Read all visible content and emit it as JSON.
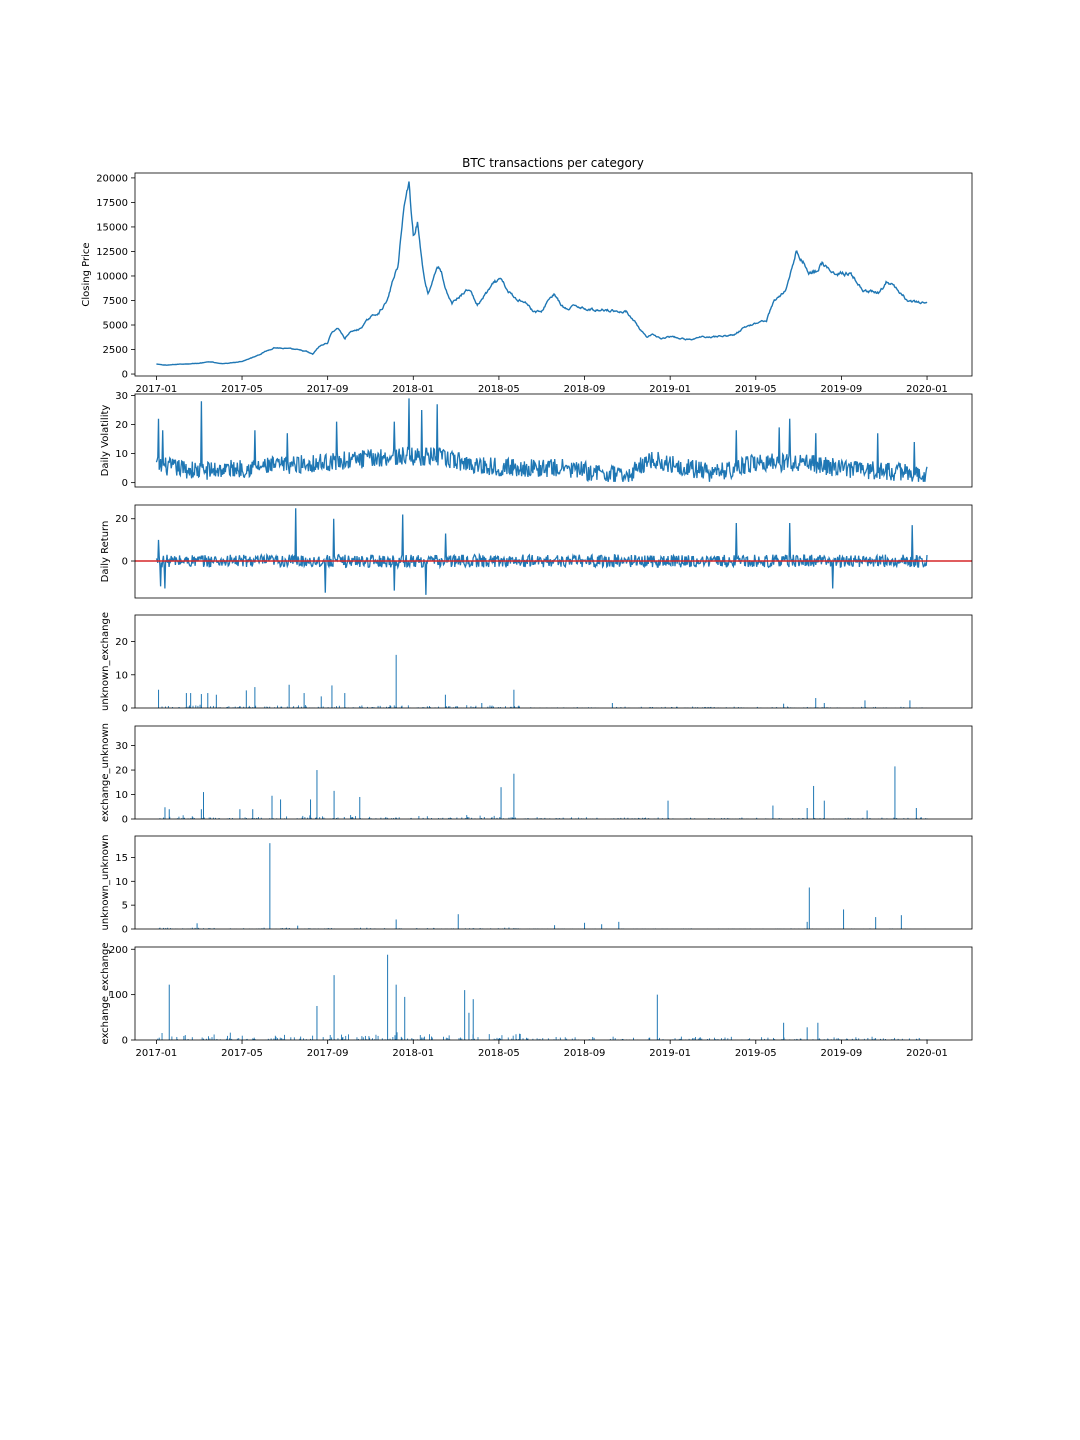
{
  "chart_data": {
    "type": "line",
    "title": "BTC transactions per category",
    "date_range": [
      "2017-01",
      "2020-01"
    ],
    "x_tick_labels": [
      "2017-01",
      "2017-05",
      "2017-09",
      "2018-01",
      "2018-05",
      "2018-09",
      "2019-01",
      "2019-05",
      "2019-09",
      "2020-01"
    ],
    "x_tick_months": [
      0,
      4,
      8,
      12,
      16,
      20,
      24,
      28,
      32,
      36
    ],
    "x_lim_months": [
      -1.0,
      38.1
    ],
    "panels": [
      {
        "id": "closing-price",
        "type": "line",
        "ylabel": "Closing Price",
        "ylim": [
          -200,
          20500
        ],
        "yticks": [
          0,
          2500,
          5000,
          7500,
          10000,
          12500,
          15000,
          17500,
          20000
        ],
        "ytick_labels": [
          "0",
          "2500",
          "5000",
          "7500",
          "10000",
          "12500",
          "15000",
          "17500",
          "20000"
        ],
        "show_x_ticks": true,
        "anchors": [
          [
            0,
            1000
          ],
          [
            0.5,
            900
          ],
          [
            1,
            1000
          ],
          [
            1.5,
            1050
          ],
          [
            2,
            1100
          ],
          [
            2.5,
            1250
          ],
          [
            3,
            1050
          ],
          [
            3.5,
            1150
          ],
          [
            4,
            1300
          ],
          [
            4.5,
            1700
          ],
          [
            5,
            2200
          ],
          [
            5.5,
            2700
          ],
          [
            6,
            2600
          ],
          [
            6.5,
            2500
          ],
          [
            7,
            2300
          ],
          [
            7.3,
            2000
          ],
          [
            7.6,
            2800
          ],
          [
            8,
            3200
          ],
          [
            8.2,
            4300
          ],
          [
            8.5,
            4700
          ],
          [
            8.8,
            3600
          ],
          [
            9,
            4200
          ],
          [
            9.5,
            4600
          ],
          [
            10,
            5800
          ],
          [
            10.4,
            6300
          ],
          [
            10.8,
            7500
          ],
          [
            11.1,
            10000
          ],
          [
            11.3,
            11000
          ],
          [
            11.5,
            16000
          ],
          [
            11.6,
            17500
          ],
          [
            11.8,
            19500
          ],
          [
            12,
            14200
          ],
          [
            12.2,
            15500
          ],
          [
            12.4,
            11500
          ],
          [
            12.5,
            10000
          ],
          [
            12.7,
            8200
          ],
          [
            12.9,
            9500
          ],
          [
            13.1,
            11000
          ],
          [
            13.3,
            10500
          ],
          [
            13.5,
            8500
          ],
          [
            13.8,
            7200
          ],
          [
            14.2,
            8000
          ],
          [
            14.6,
            8700
          ],
          [
            15,
            7000
          ],
          [
            15.4,
            8200
          ],
          [
            15.8,
            9300
          ],
          [
            16.1,
            9600
          ],
          [
            16.4,
            8500
          ],
          [
            16.8,
            7600
          ],
          [
            17.2,
            7500
          ],
          [
            17.6,
            6400
          ],
          [
            18,
            6300
          ],
          [
            18.3,
            7600
          ],
          [
            18.6,
            8200
          ],
          [
            18.9,
            7000
          ],
          [
            19.2,
            6500
          ],
          [
            19.6,
            7000
          ],
          [
            20,
            6700
          ],
          [
            20.5,
            6500
          ],
          [
            21,
            6600
          ],
          [
            21.5,
            6400
          ],
          [
            22,
            6300
          ],
          [
            22.3,
            5500
          ],
          [
            22.6,
            4500
          ],
          [
            22.9,
            3700
          ],
          [
            23.2,
            4000
          ],
          [
            23.6,
            3600
          ],
          [
            24,
            3800
          ],
          [
            24.5,
            3600
          ],
          [
            25,
            3500
          ],
          [
            25.5,
            3800
          ],
          [
            26,
            3800
          ],
          [
            26.5,
            3900
          ],
          [
            27,
            4000
          ],
          [
            27.5,
            4800
          ],
          [
            28,
            5200
          ],
          [
            28.5,
            5500
          ],
          [
            28.8,
            7200
          ],
          [
            29.1,
            8000
          ],
          [
            29.4,
            8500
          ],
          [
            29.7,
            11000
          ],
          [
            29.9,
            12500
          ],
          [
            30.2,
            11500
          ],
          [
            30.5,
            10300
          ],
          [
            30.8,
            10500
          ],
          [
            31.1,
            11300
          ],
          [
            31.4,
            10700
          ],
          [
            31.7,
            10000
          ],
          [
            32,
            10300
          ],
          [
            32.4,
            10200
          ],
          [
            32.7,
            9500
          ],
          [
            33,
            8400
          ],
          [
            33.4,
            8300
          ],
          [
            33.8,
            8200
          ],
          [
            34.1,
            9400
          ],
          [
            34.4,
            9000
          ],
          [
            34.8,
            8200
          ],
          [
            35.1,
            7500
          ],
          [
            35.5,
            7300
          ],
          [
            35.8,
            7200
          ],
          [
            36,
            7200
          ]
        ]
      },
      {
        "id": "daily-volatility",
        "type": "noise-line",
        "ylabel": "Daily Volatility",
        "ylim": [
          -1.5,
          30.5
        ],
        "yticks": [
          0,
          10,
          20,
          30
        ],
        "ytick_labels": [
          "0",
          "10",
          "20",
          "30"
        ],
        "show_x_ticks": false,
        "baseline": [
          [
            0,
            6
          ],
          [
            2,
            4
          ],
          [
            4,
            5
          ],
          [
            6,
            6
          ],
          [
            8,
            7
          ],
          [
            11,
            9
          ],
          [
            13,
            9
          ],
          [
            15,
            6
          ],
          [
            17,
            5
          ],
          [
            19,
            5
          ],
          [
            21,
            3
          ],
          [
            22,
            2
          ],
          [
            23,
            8
          ],
          [
            25,
            5
          ],
          [
            26,
            3
          ],
          [
            28,
            7
          ],
          [
            30,
            7
          ],
          [
            32,
            5
          ],
          [
            34,
            4
          ],
          [
            36,
            3
          ]
        ],
        "amplitude": 4,
        "spikes": [
          [
            0.1,
            22
          ],
          [
            0.3,
            18
          ],
          [
            2.1,
            28
          ],
          [
            4.6,
            18
          ],
          [
            6.1,
            17
          ],
          [
            8.4,
            21
          ],
          [
            11.1,
            21
          ],
          [
            11.8,
            29
          ],
          [
            12.4,
            25
          ],
          [
            13.1,
            27
          ],
          [
            27.1,
            18
          ],
          [
            29.1,
            19
          ],
          [
            29.6,
            22
          ],
          [
            30.8,
            17
          ],
          [
            33.7,
            17
          ],
          [
            35.4,
            14
          ]
        ],
        "gaps": []
      },
      {
        "id": "daily-return",
        "type": "noise-line",
        "ylabel": "Daily Return",
        "ylim": [
          -17.5,
          26.5
        ],
        "yticks": [
          0,
          20
        ],
        "ytick_labels": [
          "0",
          "20"
        ],
        "show_x_ticks": false,
        "baseline": [
          [
            0,
            0
          ],
          [
            36,
            0
          ]
        ],
        "amplitude": 4,
        "spikes": [
          [
            0.1,
            10
          ],
          [
            0.2,
            -12
          ],
          [
            0.4,
            -13
          ],
          [
            6.5,
            25
          ],
          [
            7.9,
            -15
          ],
          [
            8.3,
            20
          ],
          [
            11.1,
            -14
          ],
          [
            11.5,
            22
          ],
          [
            12.6,
            -16
          ],
          [
            13.5,
            13
          ],
          [
            27.1,
            18
          ],
          [
            29.6,
            18
          ],
          [
            31.6,
            -13
          ],
          [
            35.3,
            17
          ]
        ],
        "zero_line_color": "#d62728"
      },
      {
        "id": "unknown-exchange",
        "type": "spikes",
        "ylabel": "unknown_exchange",
        "ylim": [
          0,
          28
        ],
        "yticks": [
          0,
          10,
          20
        ],
        "ytick_labels": [
          "0",
          "10",
          "20"
        ],
        "show_x_ticks": false,
        "spikes": [
          [
            0.1,
            5.5
          ],
          [
            1.4,
            4.5
          ],
          [
            1.6,
            4.5
          ],
          [
            2.1,
            4.2
          ],
          [
            2.4,
            4.5
          ],
          [
            2.8,
            4
          ],
          [
            4.2,
            5.3
          ],
          [
            4.6,
            6.3
          ],
          [
            6.2,
            7
          ],
          [
            6.9,
            4.5
          ],
          [
            7.7,
            3.5
          ],
          [
            8.2,
            6.8
          ],
          [
            8.8,
            4.5
          ],
          [
            11.2,
            16
          ],
          [
            13.5,
            4
          ],
          [
            15.2,
            1.5
          ],
          [
            16.7,
            5.5
          ],
          [
            21.3,
            1.5
          ],
          [
            29.3,
            1.3
          ],
          [
            30.8,
            3
          ],
          [
            31.2,
            1.5
          ],
          [
            33.1,
            2.3
          ],
          [
            35.2,
            2.3
          ]
        ],
        "noise_level": 0.5
      },
      {
        "id": "exchange-unknown",
        "type": "spikes",
        "ylabel": "exchange_unknown",
        "ylim": [
          0,
          38
        ],
        "yticks": [
          0,
          10,
          20,
          30
        ],
        "ytick_labels": [
          "0",
          "10",
          "20",
          "30"
        ],
        "show_x_ticks": false,
        "spikes": [
          [
            0.4,
            4.8
          ],
          [
            0.6,
            4
          ],
          [
            2.1,
            4
          ],
          [
            2.2,
            11
          ],
          [
            3.9,
            4
          ],
          [
            4.5,
            4
          ],
          [
            5.4,
            9.5
          ],
          [
            5.8,
            8
          ],
          [
            7.2,
            8
          ],
          [
            7.5,
            20
          ],
          [
            8.3,
            11.5
          ],
          [
            9.5,
            9
          ],
          [
            16.1,
            13
          ],
          [
            16.7,
            18.5
          ],
          [
            23.9,
            7.5
          ],
          [
            28.8,
            5.5
          ],
          [
            30.4,
            4.5
          ],
          [
            30.7,
            13.5
          ],
          [
            31.2,
            7.5
          ],
          [
            33.2,
            3.5
          ],
          [
            34.5,
            21.5
          ],
          [
            35.5,
            4.5
          ]
        ],
        "noise_level": 0.8
      },
      {
        "id": "unknown-unknown",
        "type": "spikes",
        "ylabel": "unknown_unknown",
        "ylim": [
          0,
          19.5
        ],
        "yticks": [
          0,
          5,
          10,
          15
        ],
        "ytick_labels": [
          "0",
          "5",
          "10",
          "15"
        ],
        "show_x_ticks": false,
        "spikes": [
          [
            1.9,
            1.2
          ],
          [
            5.3,
            18
          ],
          [
            6.6,
            0.7
          ],
          [
            11.2,
            2
          ],
          [
            14.1,
            3.1
          ],
          [
            18.6,
            0.8
          ],
          [
            20,
            1.3
          ],
          [
            20.8,
            1
          ],
          [
            21.6,
            1.5
          ],
          [
            30.4,
            1.5
          ],
          [
            30.5,
            8.7
          ],
          [
            32.1,
            4.1
          ],
          [
            33.6,
            2.5
          ],
          [
            34.8,
            2.9
          ]
        ],
        "noise_level": 0.15
      },
      {
        "id": "exchange-exchange",
        "type": "spikes",
        "ylabel": "exchange_exchange",
        "ylim": [
          0,
          205
        ],
        "yticks": [
          0,
          100,
          200
        ],
        "ytick_labels": [
          "0",
          "100",
          "200"
        ],
        "show_x_ticks": true,
        "spikes": [
          [
            0.6,
            122
          ],
          [
            7.5,
            75
          ],
          [
            8.3,
            143
          ],
          [
            10.8,
            188
          ],
          [
            11.2,
            122
          ],
          [
            11.6,
            95
          ],
          [
            14.4,
            110
          ],
          [
            14.6,
            60
          ],
          [
            14.8,
            90
          ],
          [
            23.4,
            100
          ],
          [
            29.3,
            38
          ],
          [
            30.4,
            28
          ],
          [
            30.9,
            38
          ]
        ],
        "noise_level": 8
      }
    ]
  },
  "colors": {
    "series": "#1f77b4",
    "zero_line": "#d62728",
    "axes": "#000000"
  }
}
